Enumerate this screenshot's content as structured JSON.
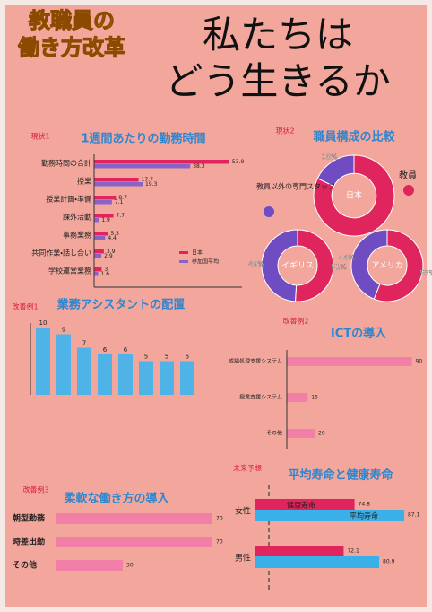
{
  "header": {
    "subtitle_lines": [
      "教職員の",
      "働き方改革"
    ],
    "title_lines": [
      "私たちは",
      "どう生きるか"
    ]
  },
  "work_hours": {
    "tag": "現状1",
    "title": "1週間あたりの勤務時間",
    "categories": [
      "勤務時間の合計",
      "授業",
      "授業計画・準備",
      "課外活動",
      "事務業務",
      "共同作業・話し合い",
      "学校運営業務"
    ],
    "series": [
      {
        "name": "日本",
        "color": "#e0245e",
        "values": [
          53.9,
          17.7,
          8.7,
          7.7,
          5.5,
          3.9,
          3.0
        ]
      },
      {
        "name": "参加国平均",
        "color": "#8a63c9",
        "values": [
          38.3,
          19.3,
          7.1,
          1.9,
          4.4,
          2.9,
          1.6
        ]
      }
    ]
  },
  "staff": {
    "tag": "現状2",
    "title": "職員構成の比較",
    "legend": [
      "教員",
      "教員以外の専門スタッフ"
    ],
    "colors": [
      "#e0245e",
      "#6f4cc2"
    ],
    "countries": [
      {
        "name": "日本",
        "values": [
          82,
          18
        ],
        "value_labels": [
          "82%",
          "18%"
        ]
      },
      {
        "name": "イギリス",
        "values": [
          51,
          49
        ],
        "value_labels": [
          "51%",
          "49%"
        ]
      },
      {
        "name": "アメリカ",
        "values": [
          56,
          44
        ],
        "value_labels": [
          "56%",
          "44%"
        ]
      }
    ]
  },
  "assistant": {
    "tag": "改善例1",
    "title": "業務アシスタントの配置",
    "color": "#4fb3e8",
    "values": [
      10,
      9,
      7,
      6,
      6,
      5,
      5,
      5
    ],
    "ylim": [
      0,
      10
    ]
  },
  "ict": {
    "tag": "改善例2",
    "title": "ICTの導入",
    "categories": [
      "成績処理支援システム",
      "授業支援システム",
      "その他"
    ],
    "values": [
      90,
      15,
      20
    ],
    "color": "#f27fa8"
  },
  "flexible": {
    "tag": "改善例3",
    "title": "柔軟な働き方の導入",
    "categories": [
      "朝型勤務",
      "時差出勤",
      "その他"
    ],
    "values": [
      70,
      70,
      30
    ],
    "color": "#f27fa8"
  },
  "life": {
    "tag": "未来予想",
    "title": "平均寿命と健康寿命",
    "categories": [
      "女性",
      "男性"
    ],
    "series": [
      {
        "name": "健康寿命",
        "color": "#e0245e",
        "values": [
          74.8,
          72.1
        ]
      },
      {
        "name": "平均寿命",
        "color": "#3ab0e8",
        "values": [
          87.1,
          80.9
        ]
      }
    ]
  }
}
